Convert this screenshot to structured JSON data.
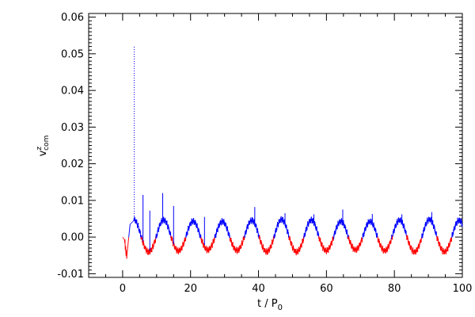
{
  "chart_data": {
    "type": "line",
    "xlabel": {
      "main": "t / P",
      "sub": "0"
    },
    "ylabel": {
      "main": "v",
      "sup": "z",
      "sub": "com"
    },
    "xlim": [
      -10,
      100
    ],
    "ylim": [
      -0.011,
      0.061
    ],
    "x_ticks": [
      {
        "value": 0,
        "label": "0"
      },
      {
        "value": 20,
        "label": "20"
      },
      {
        "value": 40,
        "label": "40"
      },
      {
        "value": 60,
        "label": "60"
      },
      {
        "value": 80,
        "label": "80"
      },
      {
        "value": 100,
        "label": "100"
      }
    ],
    "y_ticks": [
      {
        "value": -0.01,
        "label": "-0.01"
      },
      {
        "value": 0.0,
        "label": "0.00"
      },
      {
        "value": 0.01,
        "label": "0.01"
      },
      {
        "value": 0.02,
        "label": "0.02"
      },
      {
        "value": 0.03,
        "label": "0.03"
      },
      {
        "value": 0.04,
        "label": "0.04"
      },
      {
        "value": 0.05,
        "label": "0.05"
      },
      {
        "value": 0.06,
        "label": "0.06"
      }
    ],
    "grid": false,
    "legend": "none",
    "colors": {
      "positive": "#0000ff",
      "negative": "#ff0000",
      "axes": "#000000"
    },
    "oscillation": {
      "first_peak_t": 3.3,
      "period": 8.7,
      "peak": 0.0045,
      "trough": -0.0038
    },
    "spikes": [
      {
        "t": 3.4,
        "v": 0.052,
        "style": "dotted"
      },
      {
        "t": 6.0,
        "v": 0.0115
      },
      {
        "t": 8.0,
        "v": 0.0072
      },
      {
        "t": 11.8,
        "v": 0.012
      },
      {
        "t": 15.0,
        "v": 0.0085
      },
      {
        "t": 24.1,
        "v": 0.0055
      },
      {
        "t": 38.9,
        "v": 0.0082
      },
      {
        "t": 47.8,
        "v": 0.0065
      },
      {
        "t": 56.3,
        "v": 0.0062
      },
      {
        "t": 64.8,
        "v": 0.0075
      },
      {
        "t": 73.5,
        "v": 0.0063
      },
      {
        "t": 82.2,
        "v": 0.0062
      },
      {
        "t": 91.0,
        "v": 0.0068
      }
    ]
  }
}
